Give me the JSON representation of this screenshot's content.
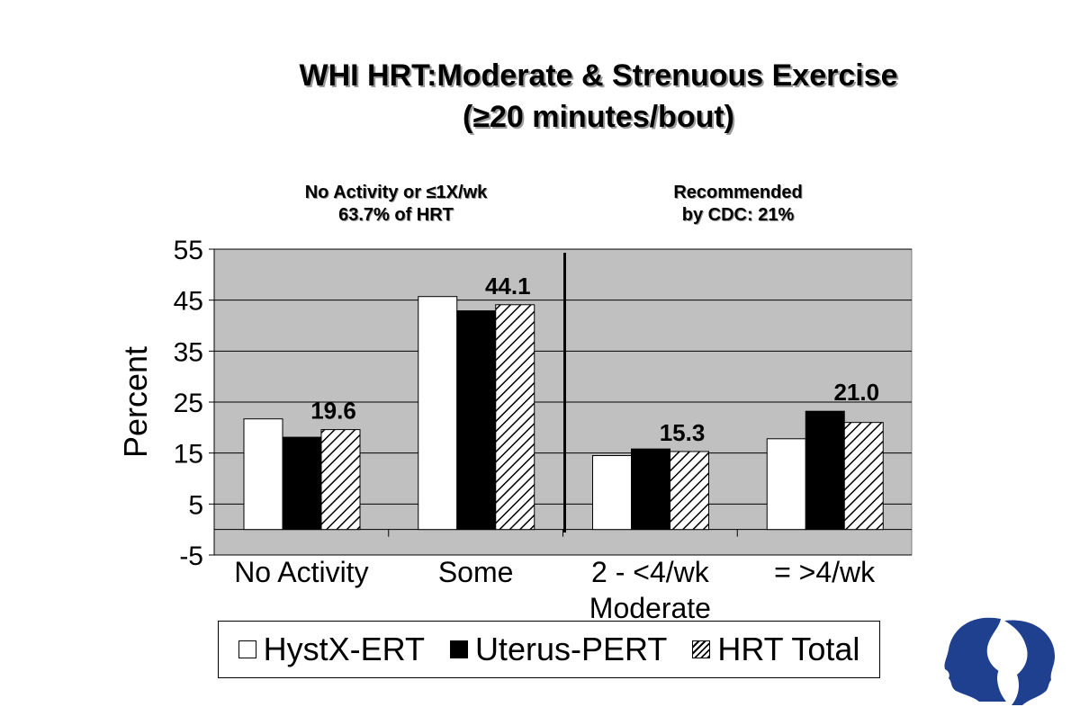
{
  "title_line1": "WHI HRT:Moderate & Strenuous Exercise",
  "title_line2": "(≥20 minutes/bout)",
  "note_left": {
    "line1": "No Activity or  ≤1X/wk",
    "line2": "63.7% of HRT"
  },
  "note_right": {
    "line1": "Recommended",
    "line2": "by CDC:   21%"
  },
  "colors": {
    "plot_bg": "#c0c0c0",
    "hyst": "#ffffff",
    "uterus": "#000000",
    "logo": "#1f3f8f"
  },
  "chart_data": {
    "type": "bar",
    "ylabel": "Percent",
    "ylim": [
      -5,
      55
    ],
    "yticks": [
      -5,
      5,
      15,
      25,
      35,
      45,
      55
    ],
    "categories": [
      [
        "No Activity"
      ],
      [
        "Some"
      ],
      [
        "2 - <4/wk",
        "Moderate"
      ],
      [
        "= >4/wk"
      ]
    ],
    "series": [
      {
        "name": "HystX-ERT",
        "values": [
          21.7,
          45.7,
          14.5,
          17.8
        ],
        "fill": "white"
      },
      {
        "name": "Uterus-PERT",
        "values": [
          18.1,
          42.9,
          15.8,
          23.2
        ],
        "fill": "black"
      },
      {
        "name": "HRT Total",
        "values": [
          19.6,
          44.1,
          15.3,
          21.0
        ],
        "fill": "hatch"
      }
    ],
    "data_labels": [
      "19.6",
      "44.1",
      "15.3",
      "21.0"
    ],
    "grid": true,
    "legend": "bottom"
  }
}
